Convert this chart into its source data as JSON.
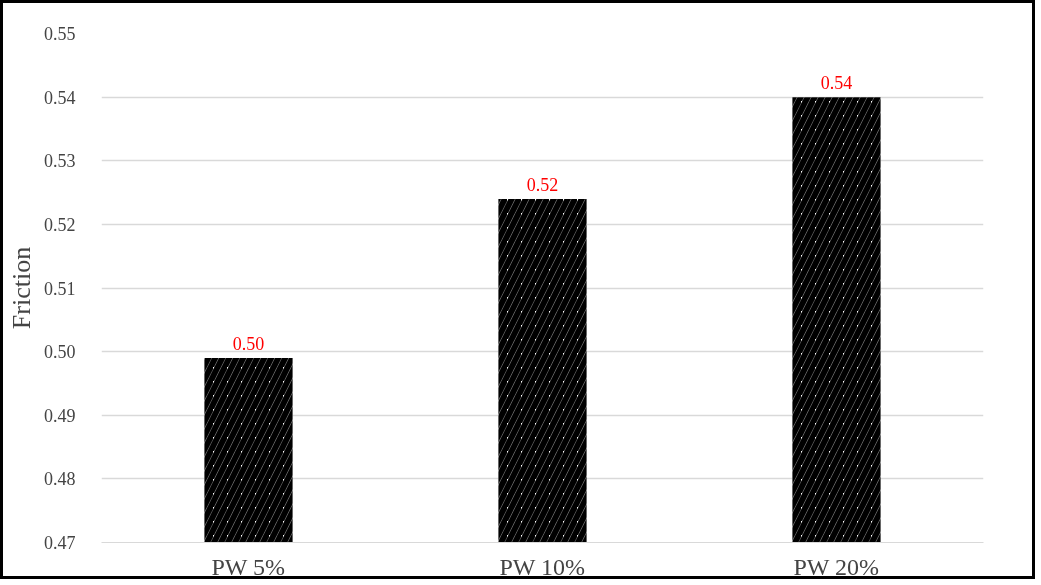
{
  "chart_data": {
    "type": "bar",
    "ylabel": "Friction",
    "categories": [
      "PW 5%",
      "PW 10%",
      "PW 20%"
    ],
    "values": [
      0.499,
      0.524,
      0.54
    ],
    "color": "#000000",
    "value_labels": [
      "0.50",
      "0.52",
      "0.54"
    ],
    "ylim": [
      0.47,
      0.55
    ],
    "yticks": [
      0.47,
      0.48,
      0.49,
      {
        "value": 0.5,
        "label": "0.50"
      },
      0.51,
      0.52,
      0.53,
      0.54,
      0.55
    ],
    "grid": "y"
  }
}
